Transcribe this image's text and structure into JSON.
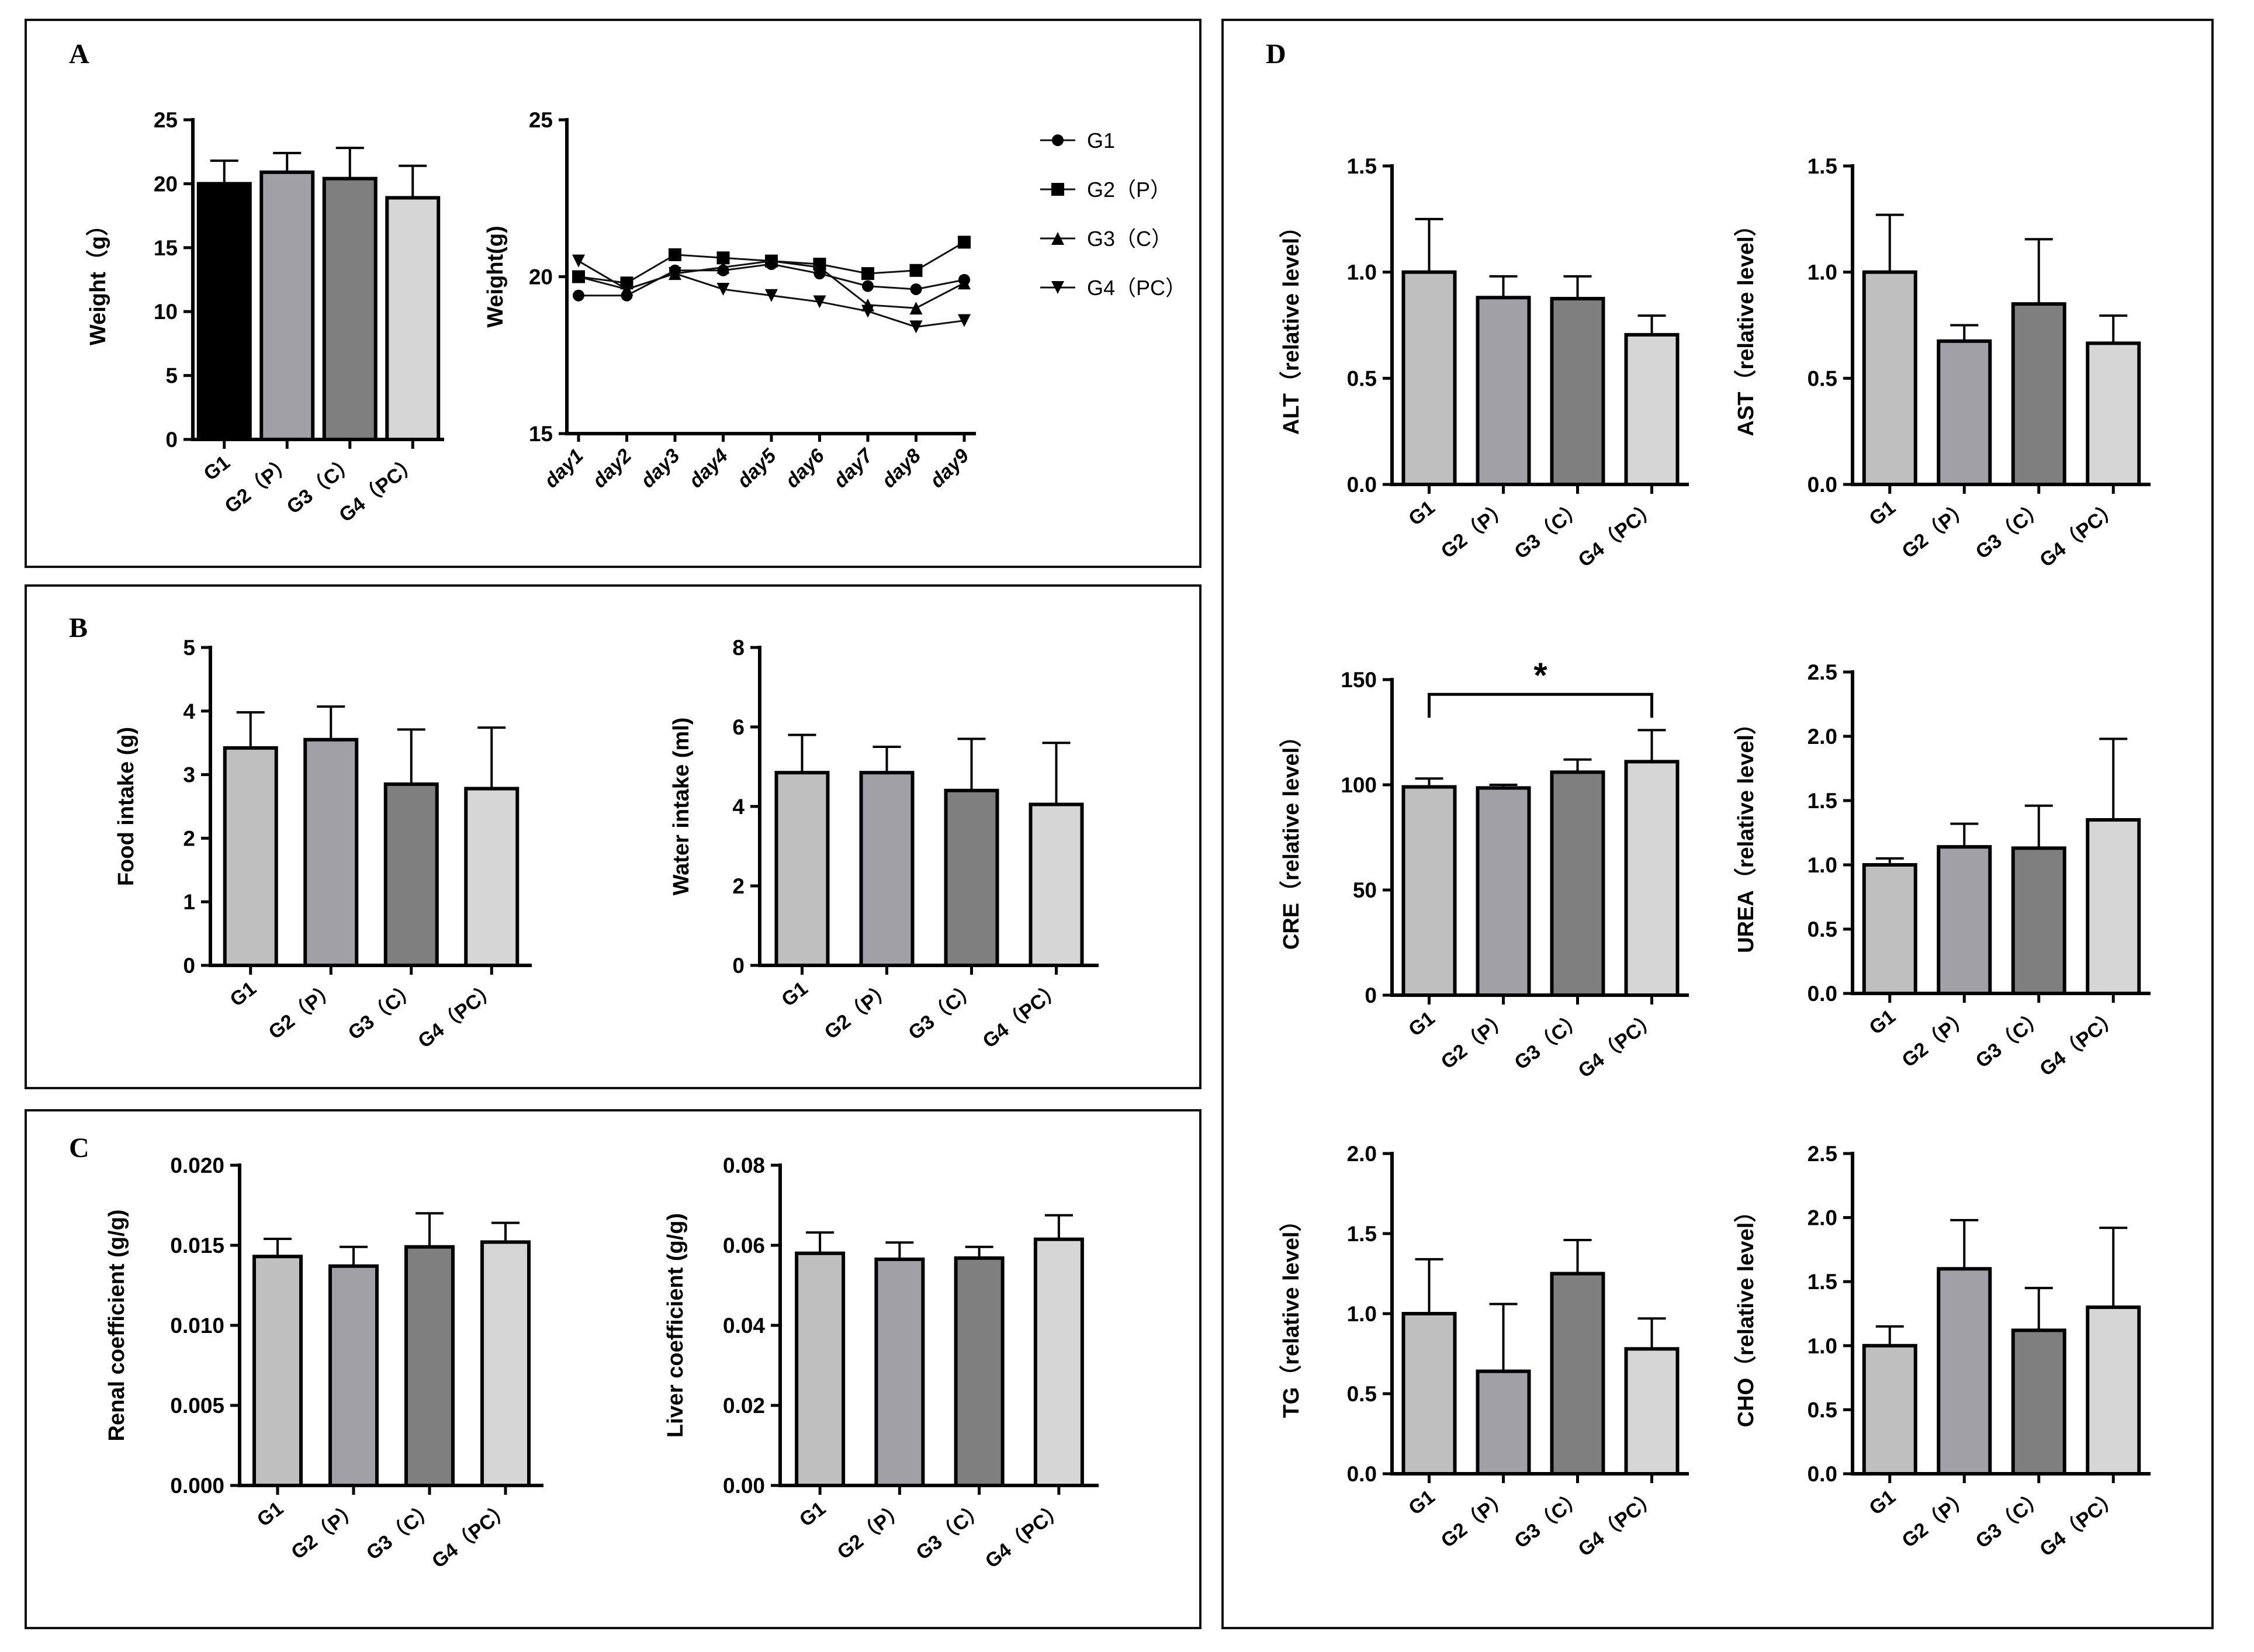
{
  "panels": {
    "A": {
      "letter": "A"
    },
    "B": {
      "letter": "B"
    },
    "C": {
      "letter": "C"
    },
    "D": {
      "letter": "D"
    }
  },
  "colors": {
    "G1_black": "#000000",
    "G1": "#bfbfbf",
    "G2": "#a0a0a6",
    "G3": "#7f7f7f",
    "G4": "#d6d6d6"
  },
  "chart_data": [
    {
      "id": "weight_bar",
      "type": "bar",
      "panel": "A",
      "categories": [
        "G1",
        "G2（P）",
        "G3（C）",
        "G4（PC）"
      ],
      "values": [
        20.0,
        20.9,
        20.4,
        18.9
      ],
      "errors": [
        1.8,
        1.5,
        2.4,
        2.5
      ],
      "ylabel": "Weight（g）",
      "ylim": [
        0,
        25
      ],
      "yticks": [
        0,
        5,
        10,
        15,
        20,
        25
      ],
      "ytick_labels": [
        "0",
        "5",
        "10",
        "15",
        "20",
        "25"
      ],
      "colors": [
        "#000000",
        "#a0a0a6",
        "#7f7f7f",
        "#d6d6d6"
      ]
    },
    {
      "id": "weight_line",
      "type": "line",
      "panel": "A",
      "categories": [
        "day1",
        "day2",
        "day3",
        "day4",
        "day5",
        "day6",
        "day7",
        "day8",
        "day9"
      ],
      "ylabel": "Weight(g)",
      "ylim": [
        15,
        25
      ],
      "yticks": [
        15,
        20,
        25
      ],
      "ytick_labels": [
        "15",
        "20",
        "25"
      ],
      "series": [
        {
          "name": "G1",
          "marker": "circle",
          "values": [
            19.4,
            19.4,
            20.2,
            20.2,
            20.4,
            20.1,
            19.7,
            19.6,
            19.9
          ]
        },
        {
          "name": "G2（P）",
          "marker": "square",
          "values": [
            20.0,
            19.8,
            20.7,
            20.6,
            20.5,
            20.4,
            20.1,
            20.2,
            21.1
          ]
        },
        {
          "name": "G3（C）",
          "marker": "triangle-up",
          "values": [
            20.0,
            19.6,
            20.1,
            20.3,
            20.5,
            20.3,
            19.1,
            19.0,
            19.8
          ]
        },
        {
          "name": "G4（PC）",
          "marker": "triangle-down",
          "values": [
            20.5,
            19.6,
            20.1,
            19.6,
            19.4,
            19.2,
            18.9,
            18.4,
            18.6
          ]
        }
      ],
      "legend": [
        "G1",
        "G2（P）",
        "G3（C）",
        "G4（PC）"
      ]
    },
    {
      "id": "food",
      "type": "bar",
      "panel": "B",
      "categories": [
        "G1",
        "G2（P）",
        "G3（C）",
        "G4（PC）"
      ],
      "values": [
        3.42,
        3.55,
        2.85,
        2.78
      ],
      "errors": [
        0.56,
        0.52,
        0.86,
        0.96
      ],
      "ylabel": "Food intake (g)",
      "ylim": [
        0,
        5
      ],
      "yticks": [
        0,
        1,
        2,
        3,
        4,
        5
      ],
      "ytick_labels": [
        "0",
        "1",
        "2",
        "3",
        "4",
        "5"
      ],
      "colors": [
        "#bfbfbf",
        "#a0a0a6",
        "#7f7f7f",
        "#d6d6d6"
      ]
    },
    {
      "id": "water",
      "type": "bar",
      "panel": "B",
      "categories": [
        "G1",
        "G2（P）",
        "G3（C）",
        "G4（PC）"
      ],
      "values": [
        4.85,
        4.85,
        4.4,
        4.05
      ],
      "errors": [
        0.95,
        0.65,
        1.3,
        1.55
      ],
      "ylabel": "Water intake (ml)",
      "ylim": [
        0,
        8
      ],
      "yticks": [
        0,
        2,
        4,
        6,
        8
      ],
      "ytick_labels": [
        "0",
        "2",
        "4",
        "6",
        "8"
      ],
      "colors": [
        "#bfbfbf",
        "#a0a0a6",
        "#7f7f7f",
        "#d6d6d6"
      ]
    },
    {
      "id": "renal",
      "type": "bar",
      "panel": "C",
      "categories": [
        "G1",
        "G2（P）",
        "G3（C）",
        "G4（PC）"
      ],
      "values": [
        0.0143,
        0.0137,
        0.0149,
        0.0152
      ],
      "errors": [
        0.0011,
        0.0012,
        0.0021,
        0.0012
      ],
      "ylabel": "Renal coefficient (g/g)",
      "ylim": [
        0,
        0.02
      ],
      "yticks": [
        0,
        0.005,
        0.01,
        0.015,
        0.02
      ],
      "ytick_labels": [
        "0.000",
        "0.005",
        "0.010",
        "0.015",
        "0.020"
      ],
      "colors": [
        "#bfbfbf",
        "#a0a0a6",
        "#7f7f7f",
        "#d6d6d6"
      ]
    },
    {
      "id": "liver",
      "type": "bar",
      "panel": "C",
      "categories": [
        "G1",
        "G2（P）",
        "G3（C）",
        "G4（PC）"
      ],
      "values": [
        0.058,
        0.0565,
        0.0568,
        0.0615
      ],
      "errors": [
        0.0052,
        0.0042,
        0.0028,
        0.006
      ],
      "ylabel": "Liver coefficient (g/g)",
      "ylim": [
        0,
        0.08
      ],
      "yticks": [
        0,
        0.02,
        0.04,
        0.06,
        0.08
      ],
      "ytick_labels": [
        "0.00",
        "0.02",
        "0.04",
        "0.06",
        "0.08"
      ],
      "colors": [
        "#bfbfbf",
        "#a0a0a6",
        "#7f7f7f",
        "#d6d6d6"
      ]
    },
    {
      "id": "alt",
      "type": "bar",
      "panel": "D",
      "categories": [
        "G1",
        "G2（P）",
        "G3（C）",
        "G4（PC）"
      ],
      "values": [
        1.0,
        0.88,
        0.875,
        0.705
      ],
      "errors": [
        0.25,
        0.1,
        0.105,
        0.09
      ],
      "ylabel": "ALT（relative level）",
      "ylim": [
        0,
        1.5
      ],
      "yticks": [
        0,
        0.5,
        1.0,
        1.5
      ],
      "ytick_labels": [
        "0.0",
        "0.5",
        "1.0",
        "1.5"
      ],
      "colors": [
        "#bfbfbf",
        "#a0a0a6",
        "#7f7f7f",
        "#d6d6d6"
      ]
    },
    {
      "id": "ast",
      "type": "bar",
      "panel": "D",
      "categories": [
        "G1",
        "G2（P）",
        "G3（C）",
        "G4（PC）"
      ],
      "values": [
        1.0,
        0.675,
        0.85,
        0.665
      ],
      "errors": [
        0.27,
        0.075,
        0.305,
        0.13
      ],
      "ylabel": "AST（relative level）",
      "ylim": [
        0,
        1.5
      ],
      "yticks": [
        0,
        0.5,
        1.0,
        1.5
      ],
      "ytick_labels": [
        "0.0",
        "0.5",
        "1.0",
        "1.5"
      ],
      "colors": [
        "#bfbfbf",
        "#a0a0a6",
        "#7f7f7f",
        "#d6d6d6"
      ]
    },
    {
      "id": "cre",
      "type": "bar",
      "panel": "D",
      "categories": [
        "G1",
        "G2（P）",
        "G3（C）",
        "G4（PC）"
      ],
      "values": [
        99,
        98.5,
        106,
        111
      ],
      "errors": [
        4,
        1.5,
        6,
        15
      ],
      "ylabel": "CRE（relative level）",
      "ylim": [
        0,
        150
      ],
      "yticks": [
        0,
        50,
        100,
        150
      ],
      "ytick_labels": [
        "0",
        "50",
        "100",
        "150"
      ],
      "colors": [
        "#bfbfbf",
        "#a0a0a6",
        "#7f7f7f",
        "#d6d6d6"
      ],
      "significance": {
        "from": 0,
        "to": 3,
        "label": "*",
        "level": 143
      }
    },
    {
      "id": "urea",
      "type": "bar",
      "panel": "D",
      "categories": [
        "G1",
        "G2（P）",
        "G3（C）",
        "G4（PC）"
      ],
      "values": [
        1.0,
        1.14,
        1.13,
        1.35
      ],
      "errors": [
        0.05,
        0.18,
        0.33,
        0.63
      ],
      "ylabel": "UREA（relative level）",
      "ylim": [
        0,
        2.5
      ],
      "yticks": [
        0,
        0.5,
        1.0,
        1.5,
        2.0,
        2.5
      ],
      "ytick_labels": [
        "0.0",
        "0.5",
        "1.0",
        "1.5",
        "2.0",
        "2.5"
      ],
      "colors": [
        "#bfbfbf",
        "#a0a0a6",
        "#7f7f7f",
        "#d6d6d6"
      ]
    },
    {
      "id": "tg",
      "type": "bar",
      "panel": "D",
      "categories": [
        "G1",
        "G2（P）",
        "G3（C）",
        "G4（PC）"
      ],
      "values": [
        1.0,
        0.64,
        1.25,
        0.78
      ],
      "errors": [
        0.34,
        0.42,
        0.21,
        0.19
      ],
      "ylabel": "TG（relative level）",
      "ylim": [
        0,
        2.0
      ],
      "yticks": [
        0,
        0.5,
        1.0,
        1.5,
        2.0
      ],
      "ytick_labels": [
        "0.0",
        "0.5",
        "1.0",
        "1.5",
        "2.0"
      ],
      "colors": [
        "#bfbfbf",
        "#a0a0a6",
        "#7f7f7f",
        "#d6d6d6"
      ]
    },
    {
      "id": "cho",
      "type": "bar",
      "panel": "D",
      "categories": [
        "G1",
        "G2（P）",
        "G3（C）",
        "G4（PC）"
      ],
      "values": [
        1.0,
        1.6,
        1.12,
        1.3
      ],
      "errors": [
        0.15,
        0.38,
        0.33,
        0.62
      ],
      "ylabel": "CHO（relative level）",
      "ylim": [
        0,
        2.5
      ],
      "yticks": [
        0,
        0.5,
        1.0,
        1.5,
        2.0,
        2.5
      ],
      "ytick_labels": [
        "0.0",
        "0.5",
        "1.0",
        "1.5",
        "2.0",
        "2.5"
      ],
      "colors": [
        "#bfbfbf",
        "#a0a0a6",
        "#7f7f7f",
        "#d6d6d6"
      ]
    }
  ]
}
